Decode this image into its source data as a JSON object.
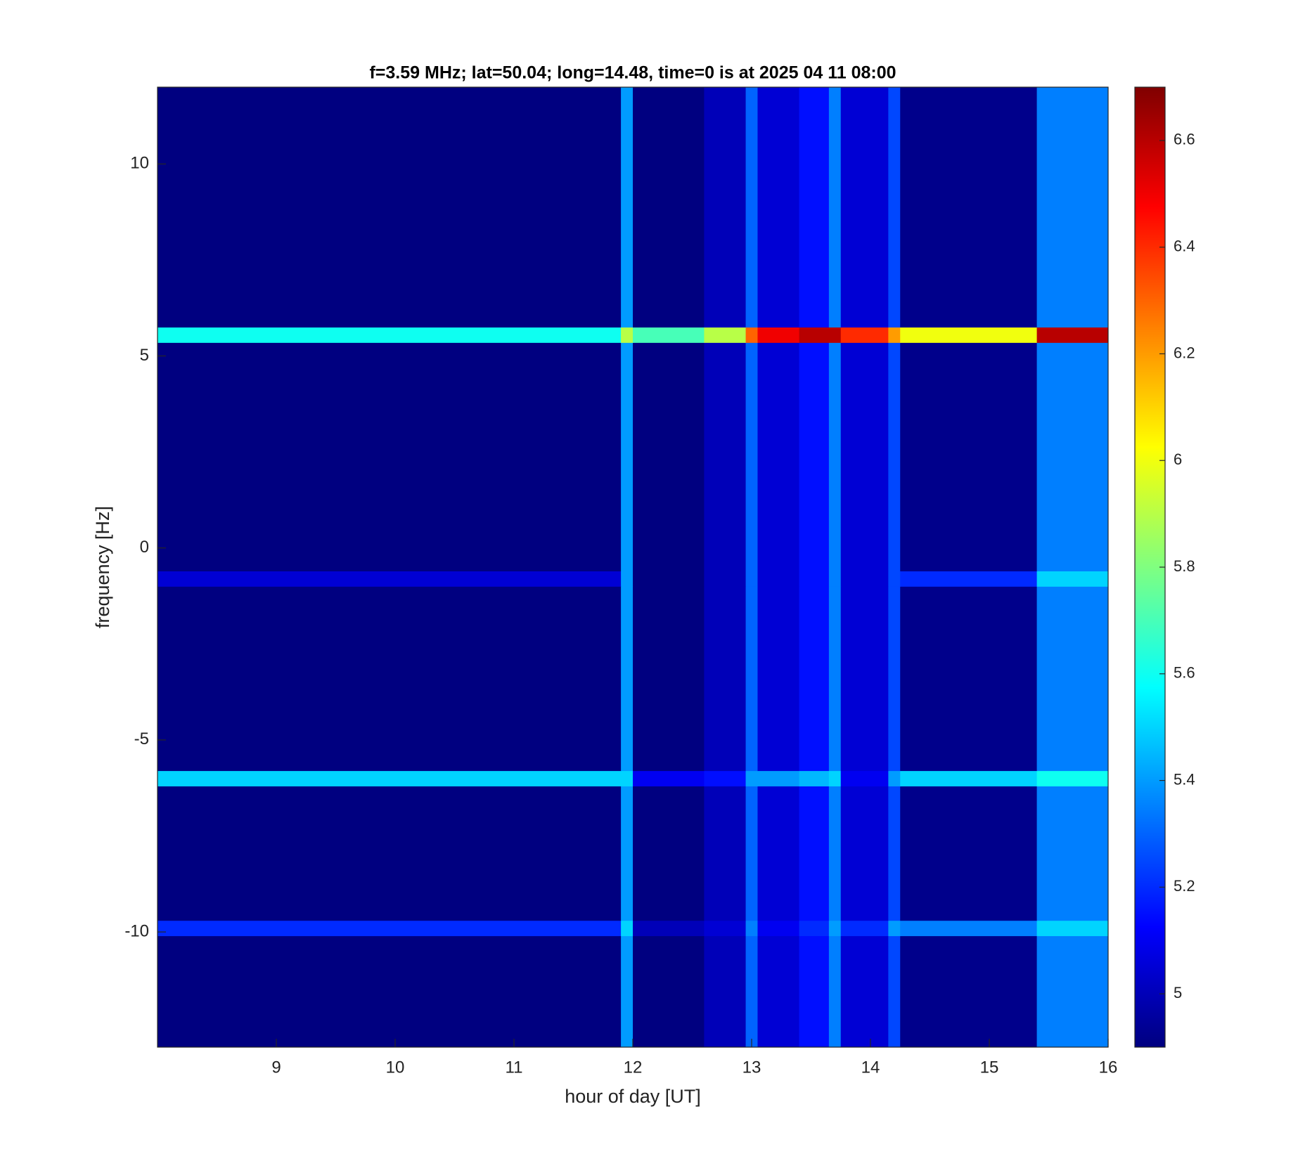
{
  "chart_data": {
    "type": "heatmap",
    "title": "f=3.59 MHz;  lat=50.04; long=14.48, time=0 is at 2025 04 11 08:00",
    "x_label": "hour of day [UT]",
    "y_label": "frequency [Hz]",
    "colormap": "jet",
    "xbins": [
      8,
      11.9,
      12.0,
      12.6,
      12.95,
      13.05,
      13.4,
      13.65,
      13.75,
      14.15,
      14.25,
      15.4,
      16
    ],
    "ybins": [
      -13,
      -10.1,
      -9.7,
      -6.2,
      -5.8,
      -1.0,
      -0.6,
      5.35,
      5.75,
      12
    ],
    "z": [
      [
        4.9,
        5.4,
        4.9,
        5.0,
        5.3,
        5.05,
        5.15,
        5.35,
        5.05,
        5.25,
        4.92,
        5.35
      ],
      [
        5.2,
        5.5,
        5.0,
        5.05,
        5.35,
        5.1,
        5.2,
        5.4,
        5.2,
        5.4,
        5.35,
        5.5
      ],
      [
        4.9,
        5.4,
        4.9,
        5.0,
        5.3,
        5.05,
        5.15,
        5.35,
        5.05,
        5.25,
        4.92,
        5.35
      ],
      [
        5.5,
        5.5,
        5.1,
        5.15,
        5.4,
        5.4,
        5.45,
        5.5,
        5.1,
        5.4,
        5.5,
        5.6
      ],
      [
        4.9,
        5.4,
        4.9,
        5.0,
        5.3,
        5.05,
        5.15,
        5.35,
        5.05,
        5.25,
        4.92,
        5.35
      ],
      [
        5.05,
        5.4,
        4.9,
        5.0,
        5.3,
        5.05,
        5.15,
        5.35,
        5.05,
        5.25,
        5.2,
        5.5
      ],
      [
        4.9,
        5.4,
        4.9,
        5.0,
        5.3,
        5.05,
        5.15,
        5.35,
        5.05,
        5.25,
        4.92,
        5.35
      ],
      [
        5.6,
        5.9,
        5.7,
        5.9,
        6.3,
        6.5,
        6.6,
        6.6,
        6.4,
        6.2,
        6.0,
        6.6
      ],
      [
        4.9,
        5.4,
        4.9,
        5.0,
        5.3,
        5.05,
        5.15,
        5.35,
        5.05,
        5.25,
        4.92,
        5.35
      ]
    ],
    "xlim": [
      8,
      16
    ],
    "xticks": [
      9,
      10,
      11,
      12,
      13,
      14,
      15,
      16
    ],
    "ylim": [
      -13,
      12
    ],
    "yticks": [
      -10,
      -5,
      0,
      5,
      10
    ],
    "clim": [
      4.9,
      6.7
    ],
    "cticks": [
      5,
      5.2,
      5.4,
      5.6,
      5.8,
      6,
      6.2,
      6.4,
      6.6
    ]
  }
}
